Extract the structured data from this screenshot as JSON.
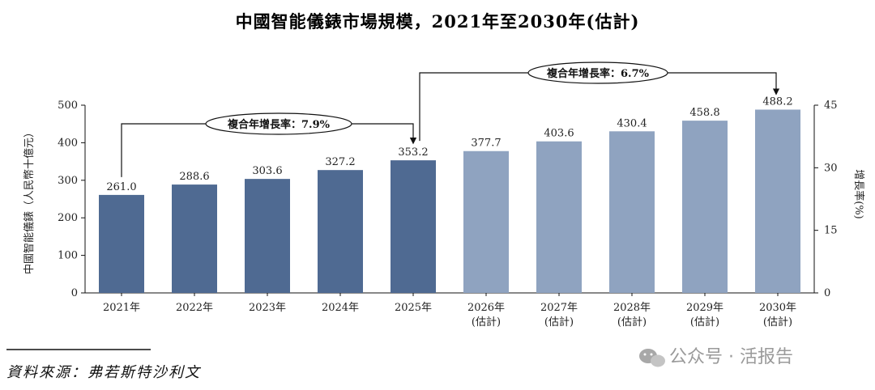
{
  "chart_data": {
    "type": "bar",
    "title": "中國智能儀錶市場規模，2021年至2030年(估計)",
    "ylabel": "中國智能儀錶（人民幣十億元）",
    "y2label": "增長率(%)",
    "ylim": [
      0,
      500
    ],
    "yticks": [
      "0",
      "100",
      "200",
      "300",
      "400",
      "500"
    ],
    "y2lim": [
      0,
      45
    ],
    "y2ticks": [
      "0",
      "15",
      "30",
      "45"
    ],
    "categories": [
      {
        "year": "2021年",
        "sub": ""
      },
      {
        "year": "2022年",
        "sub": ""
      },
      {
        "year": "2023年",
        "sub": ""
      },
      {
        "year": "2024年",
        "sub": ""
      },
      {
        "year": "2025年",
        "sub": ""
      },
      {
        "year": "2026年",
        "sub": "(估計)"
      },
      {
        "year": "2027年",
        "sub": "(估計)"
      },
      {
        "year": "2028年",
        "sub": "(估計)"
      },
      {
        "year": "2029年",
        "sub": "(估計)"
      },
      {
        "year": "2030年",
        "sub": "(估計)"
      }
    ],
    "values": [
      261.0,
      288.6,
      303.6,
      327.2,
      353.2,
      377.7,
      403.6,
      430.4,
      458.8,
      488.2
    ],
    "labels": [
      "261.0",
      "288.6",
      "303.6",
      "327.2",
      "353.2",
      "377.7",
      "403.6",
      "430.4",
      "458.8",
      "488.2"
    ],
    "estimated": [
      false,
      false,
      false,
      false,
      false,
      true,
      true,
      true,
      true,
      true
    ],
    "colors": {
      "actual": "#4f6a92",
      "estimated": "#8fa3c0"
    },
    "cagr": [
      {
        "label": "複合年增長率：7.9%",
        "from": 0,
        "to": 4
      },
      {
        "label": "複合年增長率：6.7%",
        "from": 4,
        "to": 9
      }
    ],
    "grid": false
  },
  "source": "資料來源：弗若斯特沙利文",
  "watermark": "公众号 · 活报告",
  "watermark_icon": "wechat-icon"
}
